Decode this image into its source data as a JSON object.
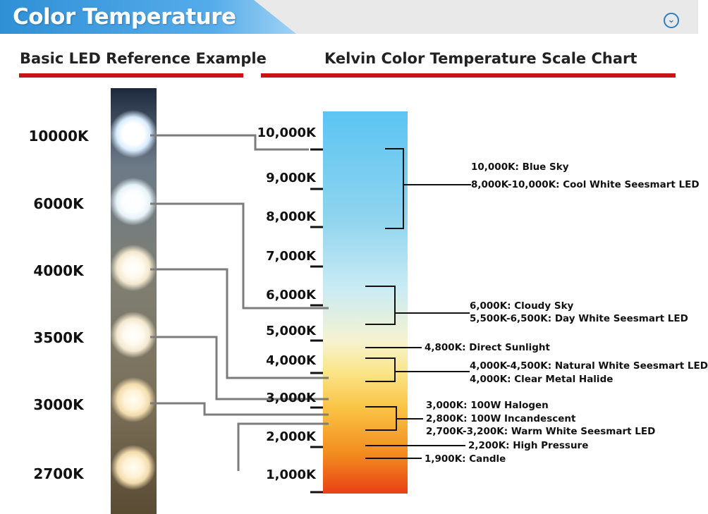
{
  "header": {
    "title": "Color Temperature"
  },
  "left_section": {
    "title": "Basic LED Reference Example"
  },
  "right_section": {
    "title": "Kelvin Color Temperature Scale Chart"
  },
  "reference_labels": [
    "10000K",
    "6000K",
    "4000K",
    "3500K",
    "3000K",
    "2700K"
  ],
  "scale_ticks": [
    "10,000K",
    "9,000K",
    "8,000K",
    "7,000K",
    "6,000K",
    "5,000K",
    "4,000K",
    "3,000K",
    "2,000K",
    "1,000K"
  ],
  "annotations": [
    "10,000K: Blue Sky",
    "8,000K-10,000K: Cool White Seesmart LED",
    "6,000K: Cloudy Sky",
    "5,500K-6,500K: Day White Seesmart LED",
    "4,800K: Direct Sunlight",
    "4,000K-4,500K: Natural White Seesmart LED",
    "4,000K: Clear Metal Halide",
    "3,000K: 100W Halogen",
    "2,800K: 100W Incandescent",
    "2,700K-3,200K: Warm White Seesmart LED",
    "2,200K: High Pressure",
    "1,900K: Candle"
  ],
  "colors": {
    "accent_red": "#c8141b",
    "header_blue": "#3a9ae0"
  }
}
